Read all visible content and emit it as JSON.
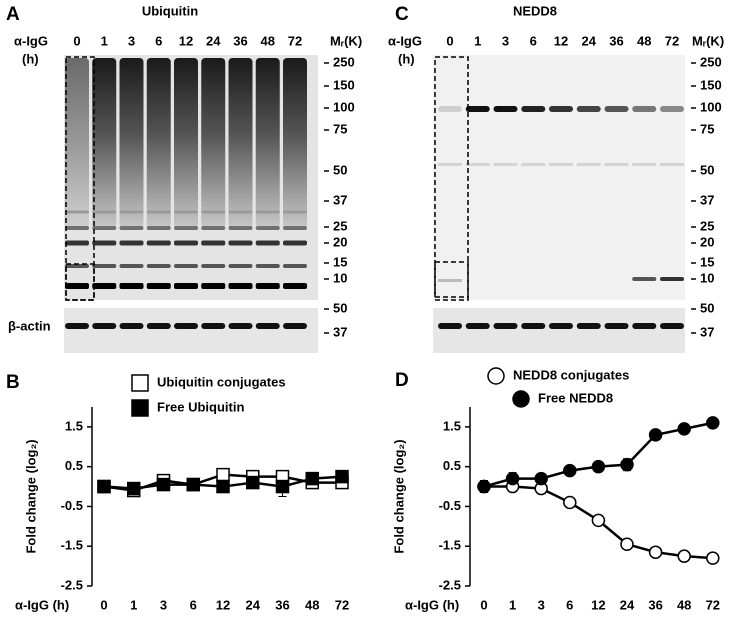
{
  "panels": {
    "A": {
      "label": "A",
      "title": "Ubiquitin",
      "x_label": "α-IgG",
      "x_unit": "(h)",
      "lanes": [
        "0",
        "1",
        "3",
        "6",
        "12",
        "24",
        "36",
        "48",
        "72"
      ],
      "mr_label": "Mᵣ(K)",
      "mr_ticks": [
        "250",
        "150",
        "100",
        "75",
        "50",
        "37",
        "25",
        "20",
        "15",
        "10"
      ],
      "actin_label": "β-actin",
      "actin_ticks": [
        "50",
        "37"
      ]
    },
    "C": {
      "label": "C",
      "title": "NEDD8",
      "x_label": "α-IgG",
      "x_unit": "(h)",
      "lanes": [
        "0",
        "1",
        "3",
        "6",
        "12",
        "24",
        "36",
        "48",
        "72"
      ],
      "mr_label": "Mᵣ(K)",
      "mr_ticks": [
        "250",
        "150",
        "100",
        "75",
        "50",
        "37",
        "25",
        "20",
        "15",
        "10"
      ],
      "actin_ticks": [
        "50",
        "37"
      ]
    }
  },
  "chart_data": [
    {
      "type": "line",
      "panel_label": "B",
      "x_label": "α-IgG (h)",
      "y_label": "Fold change  (log₂)",
      "categories": [
        "0",
        "1",
        "3",
        "6",
        "12",
        "24",
        "36",
        "48",
        "72"
      ],
      "ylim": [
        -2.5,
        2
      ],
      "yticks": [
        1.5,
        0.5,
        -0.5,
        -1.5,
        -2.5
      ],
      "series": [
        {
          "name": "Ubiquitin conjugates",
          "marker": "square",
          "color": "#ffffff",
          "values": [
            0,
            -0.1,
            0.15,
            0.05,
            0.3,
            0.25,
            0.25,
            0.1,
            0.1
          ],
          "errors": [
            0.05,
            0.08,
            0.08,
            0.05,
            0.12,
            0.15,
            0.15,
            0.1,
            0.12
          ]
        },
        {
          "name": "Free Ubiquitin",
          "marker": "square",
          "color": "#000000",
          "values": [
            0,
            -0.05,
            0.05,
            0.05,
            0,
            0.1,
            0,
            0.2,
            0.25
          ],
          "errors": [
            0.05,
            0.05,
            0.05,
            0.05,
            0.1,
            0.12,
            0.25,
            0.12,
            0.15
          ]
        }
      ]
    },
    {
      "type": "line",
      "panel_label": "D",
      "x_label": "α-IgG (h)",
      "y_label": "Fold change (log₂)",
      "categories": [
        "0",
        "1",
        "3",
        "6",
        "12",
        "24",
        "36",
        "48",
        "72"
      ],
      "ylim": [
        -2.5,
        2
      ],
      "yticks": [
        1.5,
        0.5,
        -0.5,
        -1.5,
        -2.5
      ],
      "series": [
        {
          "name": "NEDD8 conjugates",
          "marker": "circle",
          "color": "#ffffff",
          "values": [
            0,
            0,
            -0.05,
            -0.4,
            -0.85,
            -1.45,
            -1.65,
            -1.75,
            -1.8
          ],
          "errors": [
            0.15,
            0.08,
            0.1,
            0.05,
            0.08,
            0.12,
            0.05,
            0.1,
            0.05
          ]
        },
        {
          "name": "Free NEDD8",
          "marker": "circle",
          "color": "#000000",
          "values": [
            0,
            0.2,
            0.2,
            0.4,
            0.5,
            0.55,
            1.3,
            1.45,
            1.6
          ],
          "errors": [
            0.15,
            0.15,
            0.08,
            0.1,
            0.1,
            0.15,
            0.1,
            0.08,
            0.06
          ]
        }
      ]
    }
  ]
}
